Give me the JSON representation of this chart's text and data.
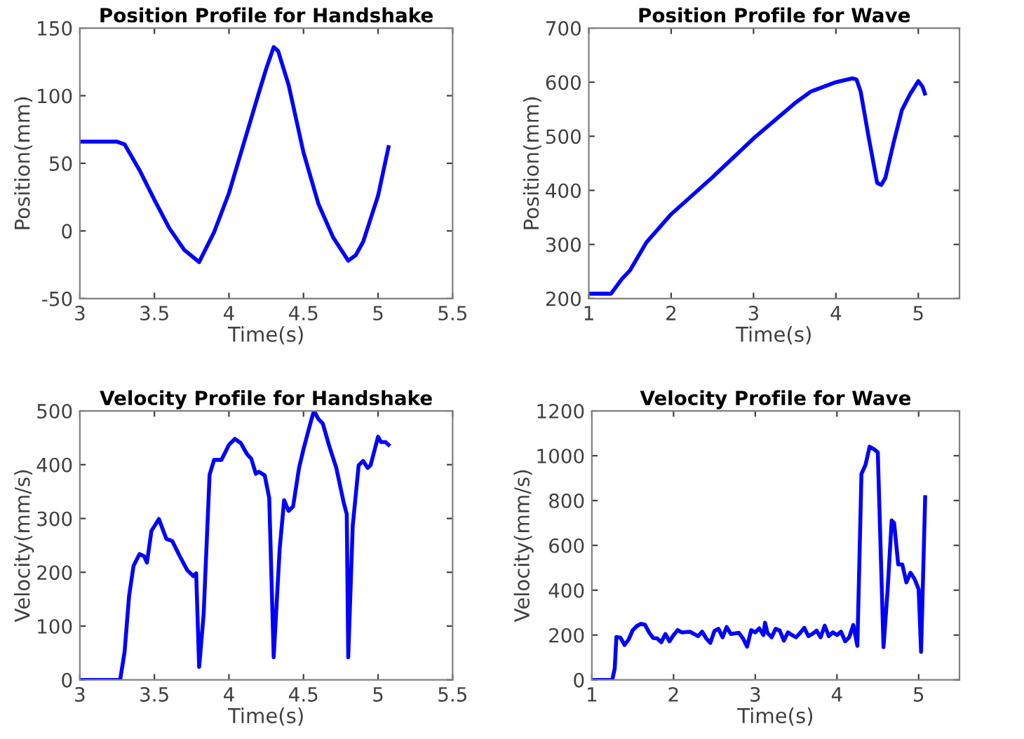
{
  "chart_data": [
    {
      "type": "line",
      "title": "Position Profile for Handshake",
      "xlabel": "Time(s)",
      "ylabel": "Position(mm)",
      "xlim": [
        3,
        5.5
      ],
      "xticks": [
        3,
        3.5,
        4,
        4.5,
        5,
        5.5
      ],
      "ylim": [
        -50,
        150
      ],
      "yticks": [
        -50,
        0,
        50,
        100,
        150
      ],
      "grid": false,
      "legend": false,
      "marker": "none",
      "line_style": "solid",
      "series": [
        {
          "color": "#0000ff",
          "x": [
            3.0,
            3.25,
            3.3,
            3.4,
            3.5,
            3.6,
            3.7,
            3.8,
            3.9,
            4.0,
            4.1,
            4.2,
            4.25,
            4.3,
            4.33,
            4.4,
            4.5,
            4.6,
            4.7,
            4.8,
            4.85,
            4.9,
            5.0,
            5.07
          ],
          "values": [
            66,
            66,
            64,
            45,
            23,
            2,
            -14,
            -23,
            -1,
            28,
            65,
            102,
            120,
            136,
            133,
            108,
            58,
            20,
            -5,
            -22,
            -18,
            -8,
            26,
            62
          ]
        }
      ]
    },
    {
      "type": "line",
      "title": "Position Profile for Wave",
      "xlabel": "Time(s)",
      "ylabel": "Position(mm)",
      "xlim": [
        1,
        5.5
      ],
      "xticks": [
        1,
        2,
        3,
        4,
        5
      ],
      "ylim": [
        200,
        700
      ],
      "yticks": [
        200,
        300,
        400,
        500,
        600,
        700
      ],
      "grid": false,
      "legend": false,
      "marker": "none",
      "line_style": "solid",
      "series": [
        {
          "color": "#0000ff",
          "x": [
            1.0,
            1.27,
            1.4,
            1.5,
            1.7,
            2.0,
            2.5,
            3.0,
            3.5,
            3.7,
            4.0,
            4.2,
            4.25,
            4.3,
            4.4,
            4.5,
            4.55,
            4.6,
            4.7,
            4.8,
            4.9,
            5.0,
            5.05,
            5.08
          ],
          "values": [
            209,
            209,
            236,
            252,
            304,
            356,
            424,
            496,
            561,
            583,
            600,
            607,
            605,
            583,
            496,
            414,
            410,
            423,
            488,
            548,
            578,
            602,
            592,
            579
          ]
        }
      ]
    },
    {
      "type": "line",
      "title": "Velocity Profile for Handshake",
      "xlabel": "Time(s)",
      "ylabel": "Velocity(mm/s)",
      "xlim": [
        3,
        5.5
      ],
      "xticks": [
        3,
        3.5,
        4,
        4.5,
        5,
        5.5
      ],
      "ylim": [
        0,
        500
      ],
      "yticks": [
        0,
        100,
        200,
        300,
        400,
        500
      ],
      "grid": false,
      "legend": false,
      "marker": "none",
      "line_style": "solid",
      "series": [
        {
          "color": "#0000ff",
          "x": [
            3.0,
            3.27,
            3.3,
            3.33,
            3.36,
            3.4,
            3.43,
            3.45,
            3.48,
            3.53,
            3.58,
            3.62,
            3.67,
            3.72,
            3.76,
            3.78,
            3.8,
            3.83,
            3.87,
            3.9,
            3.95,
            4.0,
            4.04,
            4.08,
            4.12,
            4.15,
            4.18,
            4.2,
            4.24,
            4.27,
            4.3,
            4.34,
            4.37,
            4.4,
            4.43,
            4.47,
            4.5,
            4.55,
            4.57,
            4.6,
            4.63,
            4.67,
            4.72,
            4.77,
            4.79,
            4.8,
            4.83,
            4.87,
            4.9,
            4.93,
            4.95,
            5.0,
            5.02,
            5.05,
            5.07
          ],
          "values": [
            0,
            0,
            52,
            156,
            212,
            234,
            230,
            218,
            277,
            299,
            262,
            258,
            230,
            204,
            193,
            198,
            24,
            121,
            381,
            409,
            409,
            437,
            448,
            440,
            420,
            411,
            383,
            387,
            380,
            338,
            42,
            243,
            334,
            314,
            322,
            394,
            429,
            481,
            500,
            485,
            476,
            437,
            394,
            329,
            308,
            42,
            286,
            399,
            407,
            394,
            399,
            452,
            442,
            442,
            437
          ]
        }
      ]
    },
    {
      "type": "line",
      "title": "Velocity Profile for Wave",
      "xlabel": "Time(s)",
      "ylabel": "Velocity(mm/s)",
      "xlim": [
        1,
        5.5
      ],
      "xticks": [
        1,
        2,
        3,
        4,
        5
      ],
      "ylim": [
        0,
        1200
      ],
      "yticks": [
        0,
        200,
        400,
        600,
        800,
        1000,
        1200
      ],
      "grid": false,
      "legend": false,
      "marker": "none",
      "line_style": "solid",
      "series": [
        {
          "color": "#0000ff",
          "x": [
            1.0,
            1.25,
            1.28,
            1.3,
            1.35,
            1.4,
            1.45,
            1.5,
            1.55,
            1.6,
            1.65,
            1.7,
            1.75,
            1.8,
            1.85,
            1.9,
            1.95,
            2.0,
            2.05,
            2.1,
            2.2,
            2.3,
            2.35,
            2.4,
            2.45,
            2.5,
            2.55,
            2.6,
            2.65,
            2.7,
            2.8,
            2.85,
            2.9,
            2.95,
            3.0,
            3.05,
            3.1,
            3.12,
            3.15,
            3.2,
            3.25,
            3.3,
            3.35,
            3.4,
            3.45,
            3.5,
            3.55,
            3.6,
            3.65,
            3.7,
            3.75,
            3.8,
            3.85,
            3.9,
            3.95,
            4.0,
            4.05,
            4.1,
            4.15,
            4.2,
            4.25,
            4.3,
            4.35,
            4.4,
            4.45,
            4.5,
            4.57,
            4.62,
            4.67,
            4.7,
            4.75,
            4.8,
            4.85,
            4.9,
            4.95,
            5.0,
            5.03,
            5.08
          ],
          "values": [
            0,
            0,
            52,
            191,
            188,
            156,
            180,
            222,
            240,
            250,
            246,
            212,
            187,
            185,
            168,
            205,
            172,
            200,
            222,
            212,
            215,
            195,
            215,
            185,
            165,
            218,
            228,
            190,
            236,
            205,
            210,
            185,
            148,
            222,
            212,
            230,
            200,
            255,
            210,
            190,
            228,
            220,
            175,
            212,
            200,
            190,
            210,
            232,
            195,
            205,
            220,
            190,
            242,
            195,
            212,
            200,
            215,
            172,
            190,
            245,
            152,
            919,
            960,
            1040,
            1030,
            1015,
            146,
            400,
            711,
            700,
            515,
            515,
            435,
            478,
            450,
            405,
            125,
            815
          ]
        }
      ]
    }
  ]
}
